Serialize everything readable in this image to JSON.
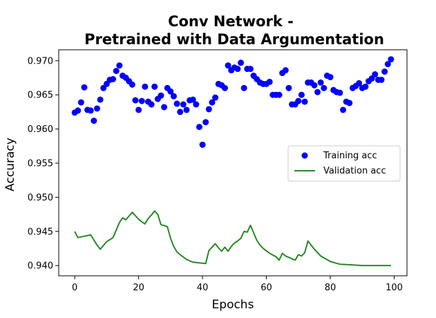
{
  "chart_data": {
    "type": "scatter",
    "title_lines": [
      "Conv Network -",
      "Pretrained with Data Argumentation"
    ],
    "xlabel": "Epochs",
    "ylabel": "Accuracy",
    "xlim": [
      -5,
      104
    ],
    "ylim": [
      0.9385,
      0.9716
    ],
    "xticks": [
      0,
      20,
      40,
      60,
      80,
      100
    ],
    "yticks": [
      0.94,
      0.945,
      0.95,
      0.955,
      0.96,
      0.965,
      0.97
    ],
    "ytick_labels": [
      "0.940",
      "0.945",
      "0.950",
      "0.955",
      "0.960",
      "0.965",
      "0.970"
    ],
    "grid": false,
    "legend_position": "center-right",
    "series": [
      {
        "name": "Training acc",
        "kind": "points",
        "color": "#0000ff",
        "x": [
          0,
          1,
          2,
          3,
          4,
          5,
          6,
          7,
          8,
          9,
          10,
          11,
          12,
          13,
          14,
          15,
          16,
          17,
          18,
          19,
          20,
          21,
          22,
          23,
          24,
          25,
          26,
          27,
          28,
          29,
          30,
          31,
          32,
          33,
          34,
          35,
          36,
          37,
          38,
          39,
          40,
          41,
          42,
          43,
          44,
          45,
          46,
          47,
          48,
          49,
          50,
          51,
          52,
          53,
          54,
          55,
          56,
          57,
          58,
          59,
          60,
          61,
          62,
          63,
          64,
          65,
          66,
          67,
          68,
          69,
          70,
          71,
          72,
          73,
          74,
          75,
          76,
          77,
          78,
          79,
          80,
          81,
          82,
          83,
          84,
          85,
          86,
          87,
          88,
          89,
          90,
          91,
          92,
          93,
          94,
          95,
          96,
          97,
          98,
          99
        ],
        "values": [
          0.9624,
          0.9627,
          0.9639,
          0.9661,
          0.9628,
          0.9627,
          0.9612,
          0.963,
          0.9643,
          0.966,
          0.9666,
          0.9672,
          0.9673,
          0.9685,
          0.9693,
          0.9678,
          0.9675,
          0.967,
          0.9665,
          0.9642,
          0.9628,
          0.9641,
          0.9662,
          0.964,
          0.9636,
          0.9662,
          0.9644,
          0.9649,
          0.9632,
          0.966,
          0.9655,
          0.9648,
          0.9637,
          0.9625,
          0.9636,
          0.9628,
          0.9642,
          0.9643,
          0.9636,
          0.9603,
          0.9577,
          0.961,
          0.9629,
          0.9639,
          0.9646,
          0.9666,
          0.9664,
          0.966,
          0.9693,
          0.9686,
          0.969,
          0.9688,
          0.9697,
          0.966,
          0.9688,
          0.9688,
          0.9678,
          0.9673,
          0.9668,
          0.9666,
          0.9666,
          0.9669,
          0.965,
          0.965,
          0.965,
          0.9682,
          0.9686,
          0.966,
          0.9636,
          0.9636,
          0.9641,
          0.965,
          0.964,
          0.9668,
          0.9668,
          0.9664,
          0.9654,
          0.9668,
          0.966,
          0.9678,
          0.9676,
          0.9657,
          0.9654,
          0.9653,
          0.9628,
          0.964,
          0.9638,
          0.966,
          0.9663,
          0.9667,
          0.966,
          0.9662,
          0.967,
          0.9674,
          0.968,
          0.9672,
          0.9672,
          0.9684,
          0.9695,
          0.9702
        ]
      },
      {
        "name": "Validation acc",
        "kind": "line",
        "color": "#228b22",
        "x": [
          0,
          1,
          3,
          5,
          7,
          8,
          10,
          11,
          12,
          13,
          14,
          15,
          16,
          18,
          19,
          20,
          21,
          22,
          23,
          24,
          25,
          26,
          27,
          29,
          30,
          31,
          32,
          33,
          35,
          37,
          39,
          41,
          42,
          44,
          45,
          46,
          47,
          48,
          49,
          50,
          51,
          52,
          53,
          54,
          55,
          56,
          57,
          58,
          59,
          61,
          63,
          64,
          65,
          66,
          68,
          69,
          70,
          71,
          72,
          73,
          75,
          77,
          80,
          83,
          87,
          90,
          95,
          99
        ],
        "values": [
          0.945,
          0.9441,
          0.9443,
          0.9445,
          0.943,
          0.9424,
          0.9435,
          0.9438,
          0.9441,
          0.9452,
          0.9463,
          0.947,
          0.9467,
          0.9478,
          0.9473,
          0.9468,
          0.9464,
          0.9461,
          0.9469,
          0.9474,
          0.948,
          0.9475,
          0.946,
          0.9457,
          0.944,
          0.9428,
          0.942,
          0.9416,
          0.9409,
          0.9405,
          0.9404,
          0.9403,
          0.9422,
          0.9432,
          0.9426,
          0.9421,
          0.9427,
          0.9421,
          0.9428,
          0.9433,
          0.9436,
          0.944,
          0.945,
          0.9449,
          0.9459,
          0.9448,
          0.9437,
          0.943,
          0.9425,
          0.9418,
          0.9413,
          0.9408,
          0.9418,
          0.9414,
          0.941,
          0.9408,
          0.9416,
          0.9414,
          0.9419,
          0.9436,
          0.9424,
          0.9414,
          0.9406,
          0.9402,
          0.9401,
          0.94,
          0.94,
          0.94
        ]
      }
    ]
  }
}
